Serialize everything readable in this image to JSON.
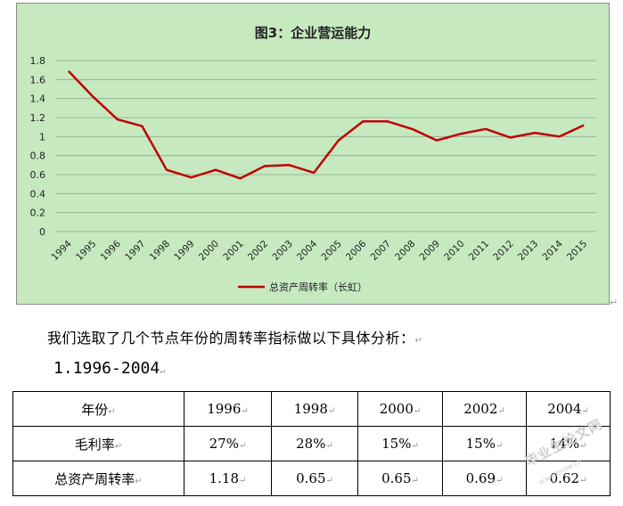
{
  "chart_data": {
    "type": "line",
    "title": "图3：企业营运能力",
    "categories": [
      "1994",
      "1995",
      "1996",
      "1997",
      "1998",
      "1999",
      "2000",
      "2001",
      "2002",
      "2003",
      "2004",
      "2005",
      "2006",
      "2007",
      "2008",
      "2009",
      "2010",
      "2011",
      "2012",
      "2013",
      "2014",
      "2015"
    ],
    "series": [
      {
        "name": "总资产周转率（长虹）",
        "values": [
          1.69,
          1.42,
          1.18,
          1.11,
          0.65,
          0.57,
          0.65,
          0.56,
          0.69,
          0.7,
          0.62,
          0.96,
          1.16,
          1.16,
          1.08,
          0.96,
          1.03,
          1.08,
          0.99,
          1.04,
          1.0,
          1.12
        ]
      }
    ],
    "y_ticks": [
      "0",
      "0.2",
      "0.4",
      "0.6",
      "0.8",
      "1",
      "1.2",
      "1.4",
      "1.6",
      "1.8"
    ],
    "ylim": [
      0,
      1.8
    ],
    "grid": true,
    "legend": "bottom",
    "colors": {
      "line": "#c00000",
      "grid": "#8fa98a",
      "background": "#c6e9c0"
    }
  },
  "paragraph": "我们选取了几个节点年份的周转率指标做以下具体分析：",
  "heading": "1.1996-2004",
  "table": {
    "header": [
      "年份",
      "1996",
      "1998",
      "2000",
      "2002",
      "2004"
    ],
    "rows": [
      [
        "毛利率",
        "27%",
        "28%",
        "15%",
        "15%",
        "14%"
      ],
      [
        "总资产周转率",
        "1.18",
        "0.65",
        "0.65",
        "0.69",
        "0.62"
      ]
    ]
  },
  "marks": {
    "return": "↵",
    "cell": "↵"
  },
  "watermark": {
    "text": "毕业生论文网",
    "url": "www.bysw.cn"
  }
}
